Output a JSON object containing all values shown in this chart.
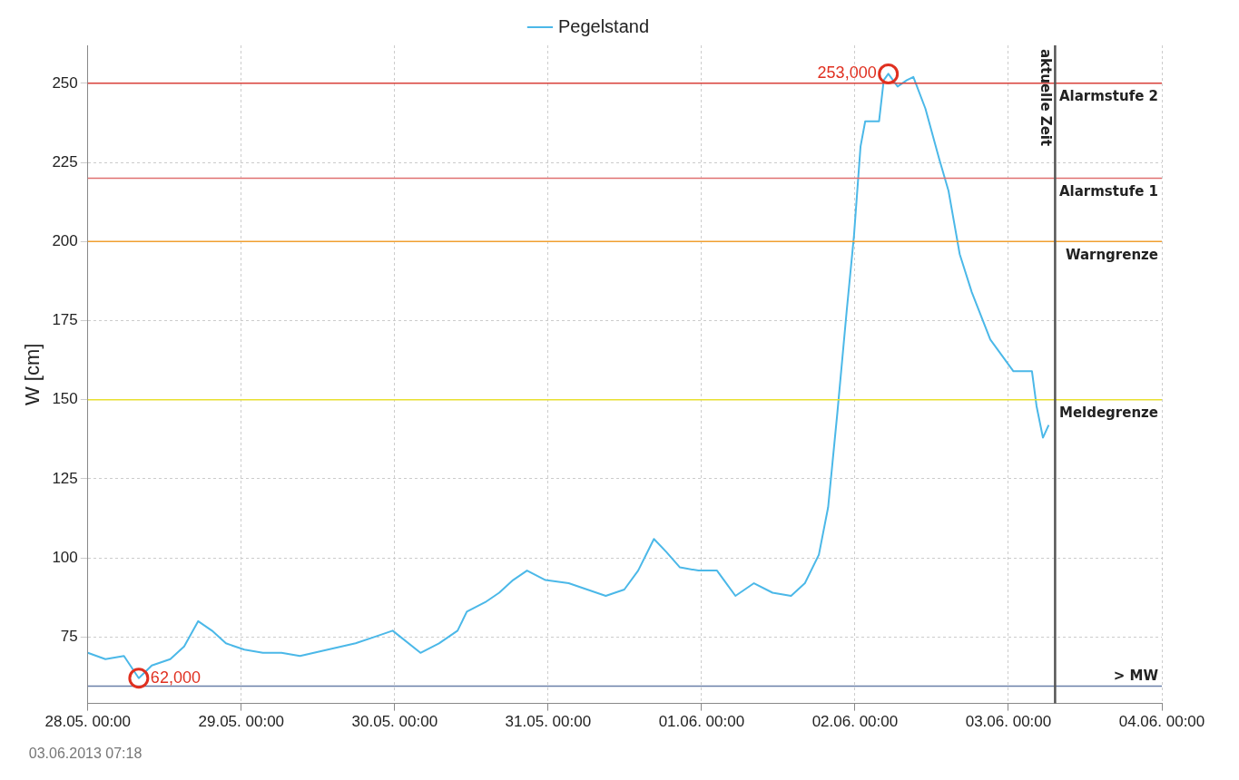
{
  "chart_data": {
    "type": "line",
    "ylabel": "W [cm]",
    "x": [
      "2013-05-28T00:00",
      "2013-05-28T02:45",
      "2013-05-28T05:39",
      "2013-05-28T07:58",
      "2013-05-28T10:00",
      "2013-05-28T12:54",
      "2013-05-28T15:04",
      "2013-05-28T17:15",
      "2013-05-28T19:25",
      "2013-05-28T21:36",
      "2013-05-29T00:29",
      "2013-05-29T03:23",
      "2013-05-29T06:17",
      "2013-05-29T09:11",
      "2013-05-29T13:32",
      "2013-05-29T17:53",
      "2013-05-29T20:47",
      "2013-05-29T23:41",
      "2013-05-30T04:02",
      "2013-05-30T06:56",
      "2013-05-30T09:50",
      "2013-05-30T11:17",
      "2013-05-30T14:10",
      "2013-05-30T16:21",
      "2013-05-30T18:31",
      "2013-05-30T20:42",
      "2013-05-30T23:35",
      "2013-05-31T03:13",
      "2013-05-31T06:07",
      "2013-05-31T09:01",
      "2013-05-31T11:55",
      "2013-05-31T14:05",
      "2013-05-31T16:33",
      "2013-05-31T18:26",
      "2013-05-31T20:37",
      "2013-05-31T23:31",
      "2013-06-01T02:25",
      "2013-06-01T03:52",
      "2013-06-01T05:18",
      "2013-06-01T08:12",
      "2013-06-01T11:06",
      "2013-06-01T14:00",
      "2013-06-01T16:10",
      "2013-06-01T18:21",
      "2013-06-01T19:48",
      "2013-06-01T21:15",
      "2013-06-01T22:42",
      "2013-06-01T23:51",
      "2013-06-02T00:52",
      "2013-06-02T01:36",
      "2013-06-02T03:46",
      "2013-06-02T04:30",
      "2013-06-02T05:13",
      "2013-06-02T06:40",
      "2013-06-02T08:07",
      "2013-06-02T09:08",
      "2013-06-02T11:01",
      "2013-06-02T13:11",
      "2013-06-02T14:38",
      "2013-06-02T16:23",
      "2013-06-02T18:16",
      "2013-06-02T21:10",
      "2013-06-03T00:47",
      "2013-06-03T03:41",
      "2013-06-03T04:24",
      "2013-06-03T05:24",
      "2013-06-03T06:18"
    ],
    "series": [
      {
        "name": "Pegelstand",
        "color": "#4bb8e8",
        "values": [
          70,
          68,
          69,
          62,
          66,
          68,
          72,
          80,
          77,
          73,
          71,
          70,
          70,
          69,
          71,
          73,
          75,
          77,
          70,
          73,
          77,
          83,
          86,
          89,
          93,
          96,
          93,
          92,
          90,
          88,
          90,
          96,
          106,
          102,
          97,
          96,
          96,
          92,
          88,
          92,
          89,
          88,
          92,
          101,
          116,
          146,
          178,
          202,
          230,
          238,
          238,
          251,
          253,
          249,
          251,
          252,
          242,
          226,
          216,
          196,
          184,
          169,
          159,
          159,
          148,
          138,
          142
        ]
      }
    ],
    "xlim": [
      "2013-05-28T00:00",
      "2013-06-04T00:00"
    ],
    "xticks": [
      {
        "value": "2013-05-28T00:00",
        "label": "28.05. 00:00"
      },
      {
        "value": "2013-05-29T00:00",
        "label": "29.05. 00:00"
      },
      {
        "value": "2013-05-30T00:00",
        "label": "30.05. 00:00"
      },
      {
        "value": "2013-05-31T00:00",
        "label": "31.05. 00:00"
      },
      {
        "value": "2013-06-01T00:00",
        "label": "01.06. 00:00"
      },
      {
        "value": "2013-06-02T00:00",
        "label": "02.06. 00:00"
      },
      {
        "value": "2013-06-03T00:00",
        "label": "03.06. 00:00"
      },
      {
        "value": "2013-06-04T00:00",
        "label": "04.06. 00:00"
      }
    ],
    "ylim": [
      54,
      262
    ],
    "yticks": [
      75,
      100,
      125,
      150,
      175,
      200,
      225,
      250
    ],
    "grid": true,
    "legend": "top",
    "marker": "none",
    "line_style": "solid",
    "ref_lines": [
      {
        "axis": "y",
        "value": 250,
        "label": "Alarmstufe 2",
        "color": "#d9413a"
      },
      {
        "axis": "y",
        "value": 220,
        "label": "Alarmstufe 1",
        "color": "#e07070"
      },
      {
        "axis": "y",
        "value": 200,
        "label": "Warngrenze",
        "color": "#f0a030"
      },
      {
        "axis": "y",
        "value": 150,
        "label": "Meldegrenze",
        "color": "#e8e030"
      },
      {
        "axis": "y",
        "value": 59.5,
        "label": "> MW",
        "color": "#6a7fa8"
      },
      {
        "axis": "x",
        "value": "2013-06-03T07:18",
        "label": "aktuelle Zeit",
        "color": "#555555"
      }
    ],
    "annotations": [
      "03.06.2013 07:18",
      {
        "text": "253,000",
        "x": "2013-06-02T05:13",
        "y": 253
      },
      {
        "text": "62,000",
        "x": "2013-05-28T07:58",
        "y": 62
      }
    ]
  }
}
